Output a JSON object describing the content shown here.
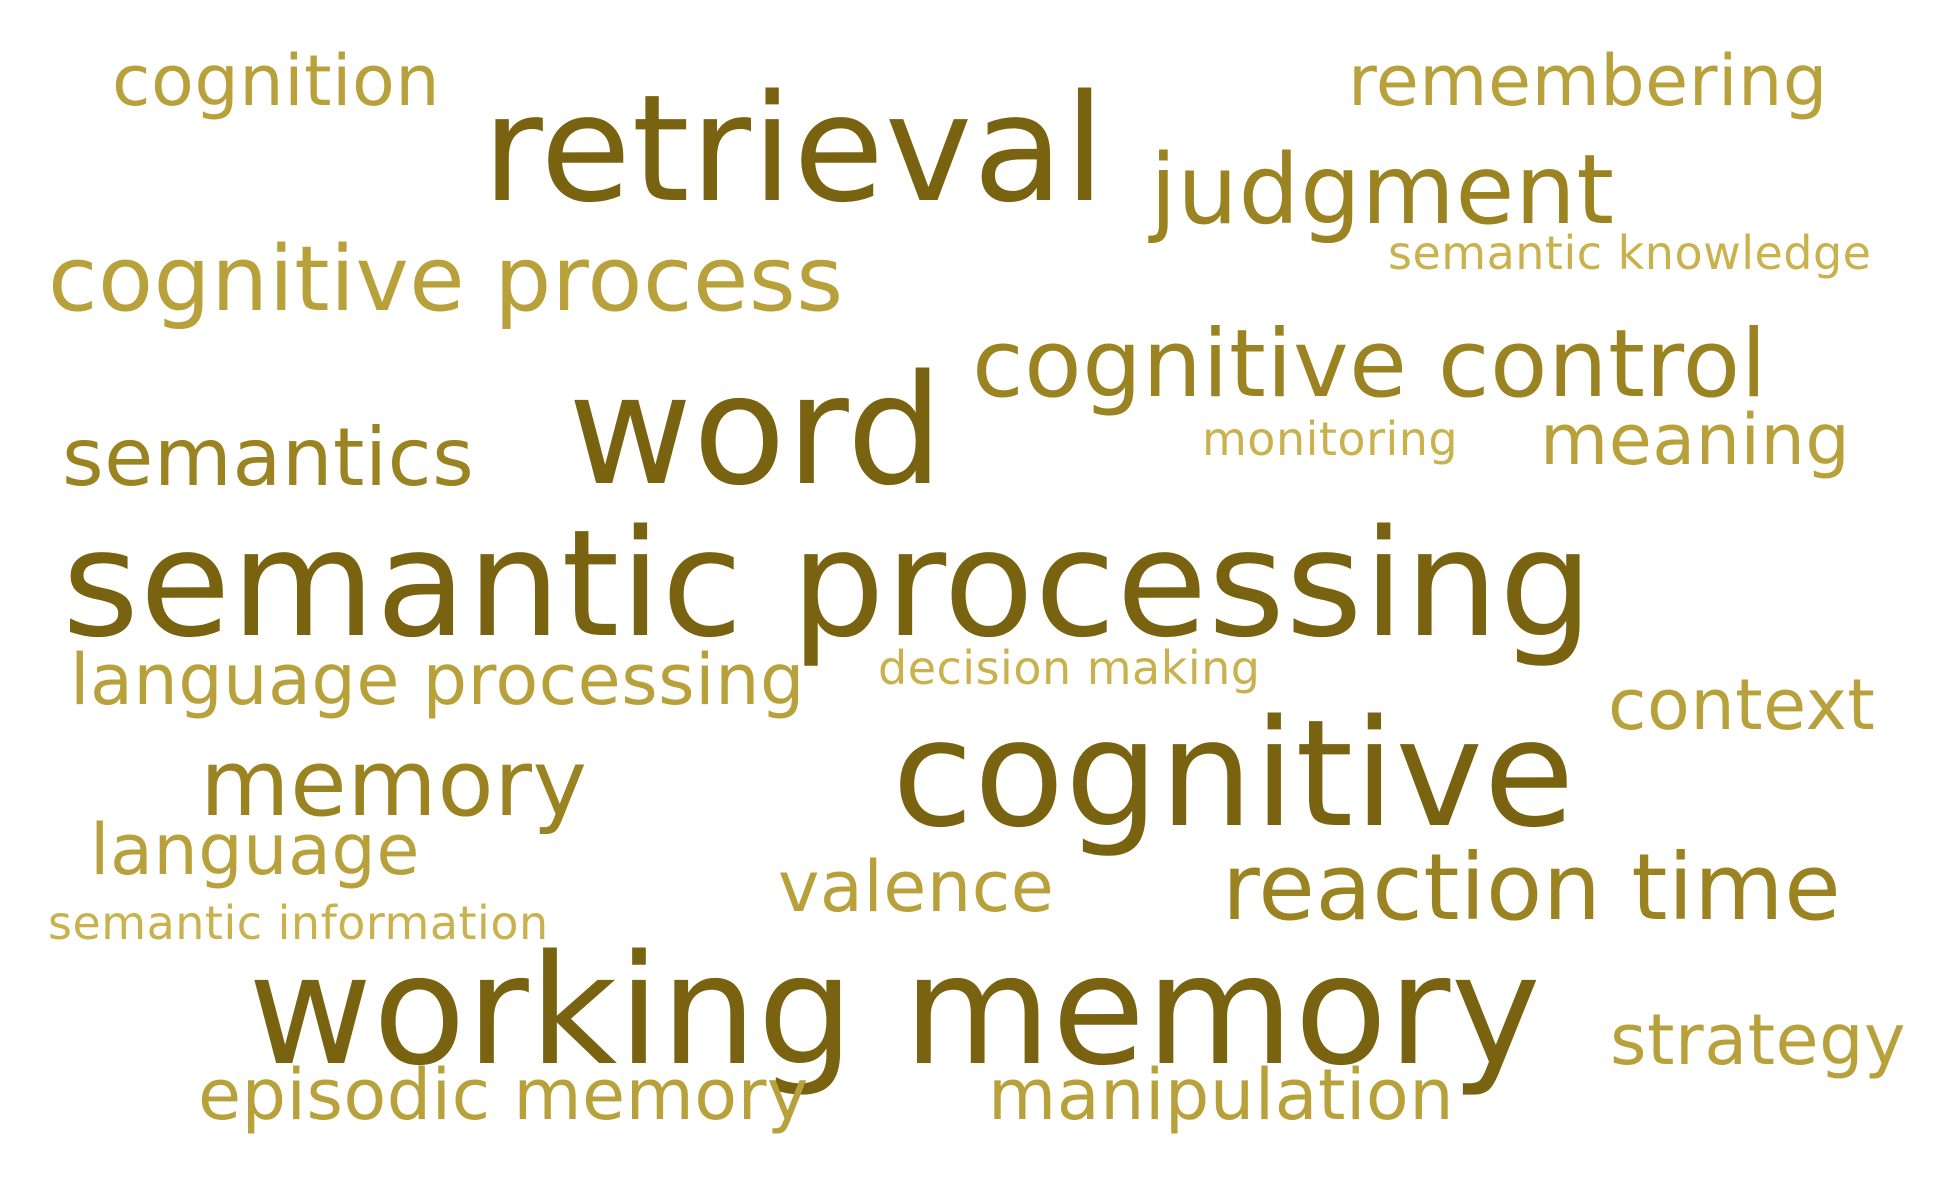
{
  "words": {
    "retrieval": "retrieval",
    "judgment": "judgment",
    "cognition": "cognition",
    "remembering": "remembering",
    "semantic_knowledge": "semantic knowledge",
    "cognitive_process": "cognitive process",
    "cognitive_control": "cognitive control",
    "word": "word",
    "semantics": "semantics",
    "monitoring": "monitoring",
    "meaning": "meaning",
    "semantic_processing": "semantic processing",
    "language_processing": "language processing",
    "decision_making": "decision making",
    "context": "context",
    "memory": "memory",
    "cognitive": "cognitive",
    "language": "language",
    "valence": "valence",
    "reaction_time": "reaction time",
    "semantic_information": "semantic information",
    "working_memory": "working memory",
    "strategy": "strategy",
    "episodic_memory": "episodic memory",
    "manipulation": "manipulation"
  },
  "colors": {
    "tier1": "#7a6310",
    "tier2": "#9a8320",
    "tier3": "#b8a13a",
    "tier4": "#c9b24e",
    "background": "#ffffff"
  }
}
